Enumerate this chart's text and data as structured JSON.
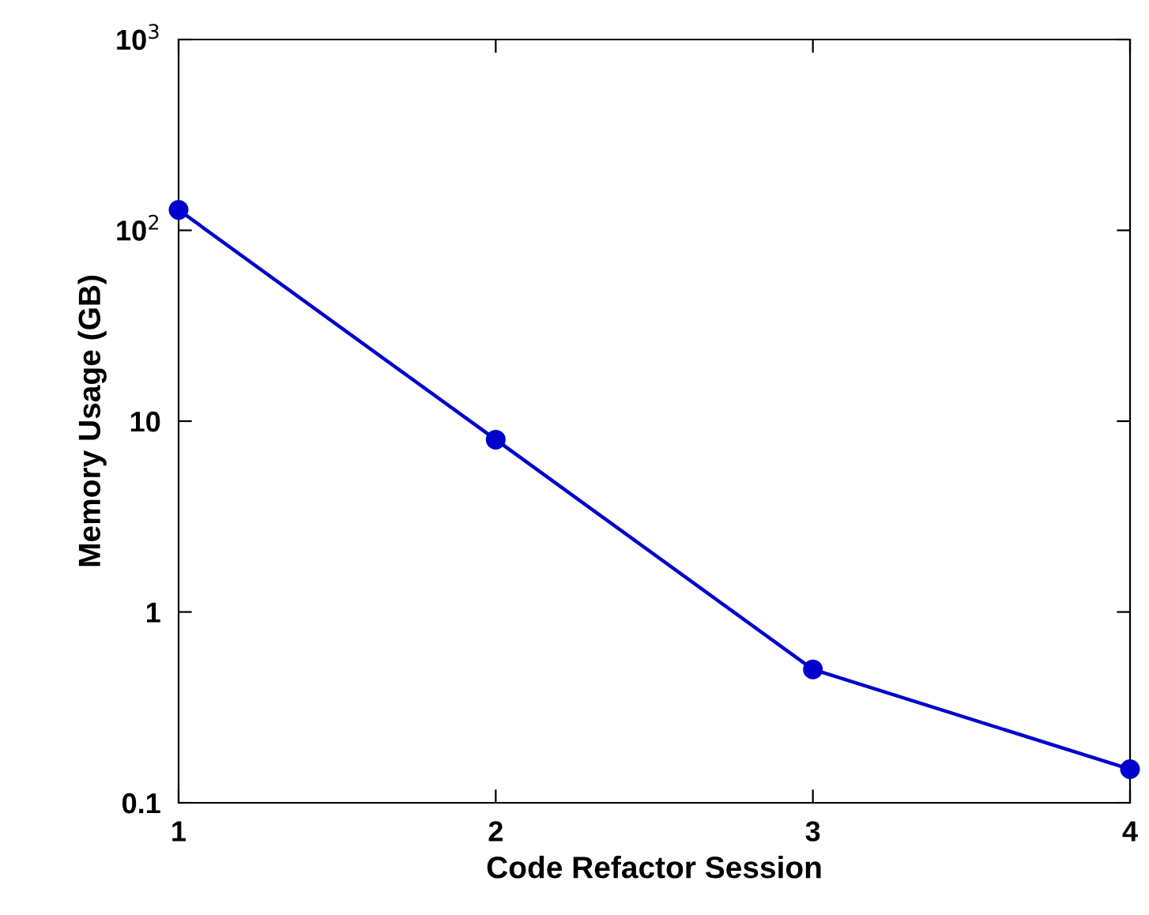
{
  "chart_data": {
    "type": "line",
    "xlabel": "Code Refactor Session",
    "ylabel": "Memory Usage (GB)",
    "x": [
      1,
      2,
      3,
      4
    ],
    "series": [
      {
        "color": "#0000cc",
        "values": [
          128,
          8,
          0.5,
          0.15
        ]
      }
    ],
    "log": "y",
    "xlim": [
      1,
      4
    ],
    "xticks": [
      1,
      2,
      3,
      4
    ],
    "ylim": [
      0.1,
      1000
    ],
    "yticks": [
      0.1,
      1,
      10,
      {
        "value": 100,
        "label": "10$^{2}$"
      },
      {
        "value": 1000,
        "label": "10$^{3}$"
      }
    ],
    "marker": "circle",
    "line_style": "solid",
    "grid": false,
    "legend": false
  }
}
